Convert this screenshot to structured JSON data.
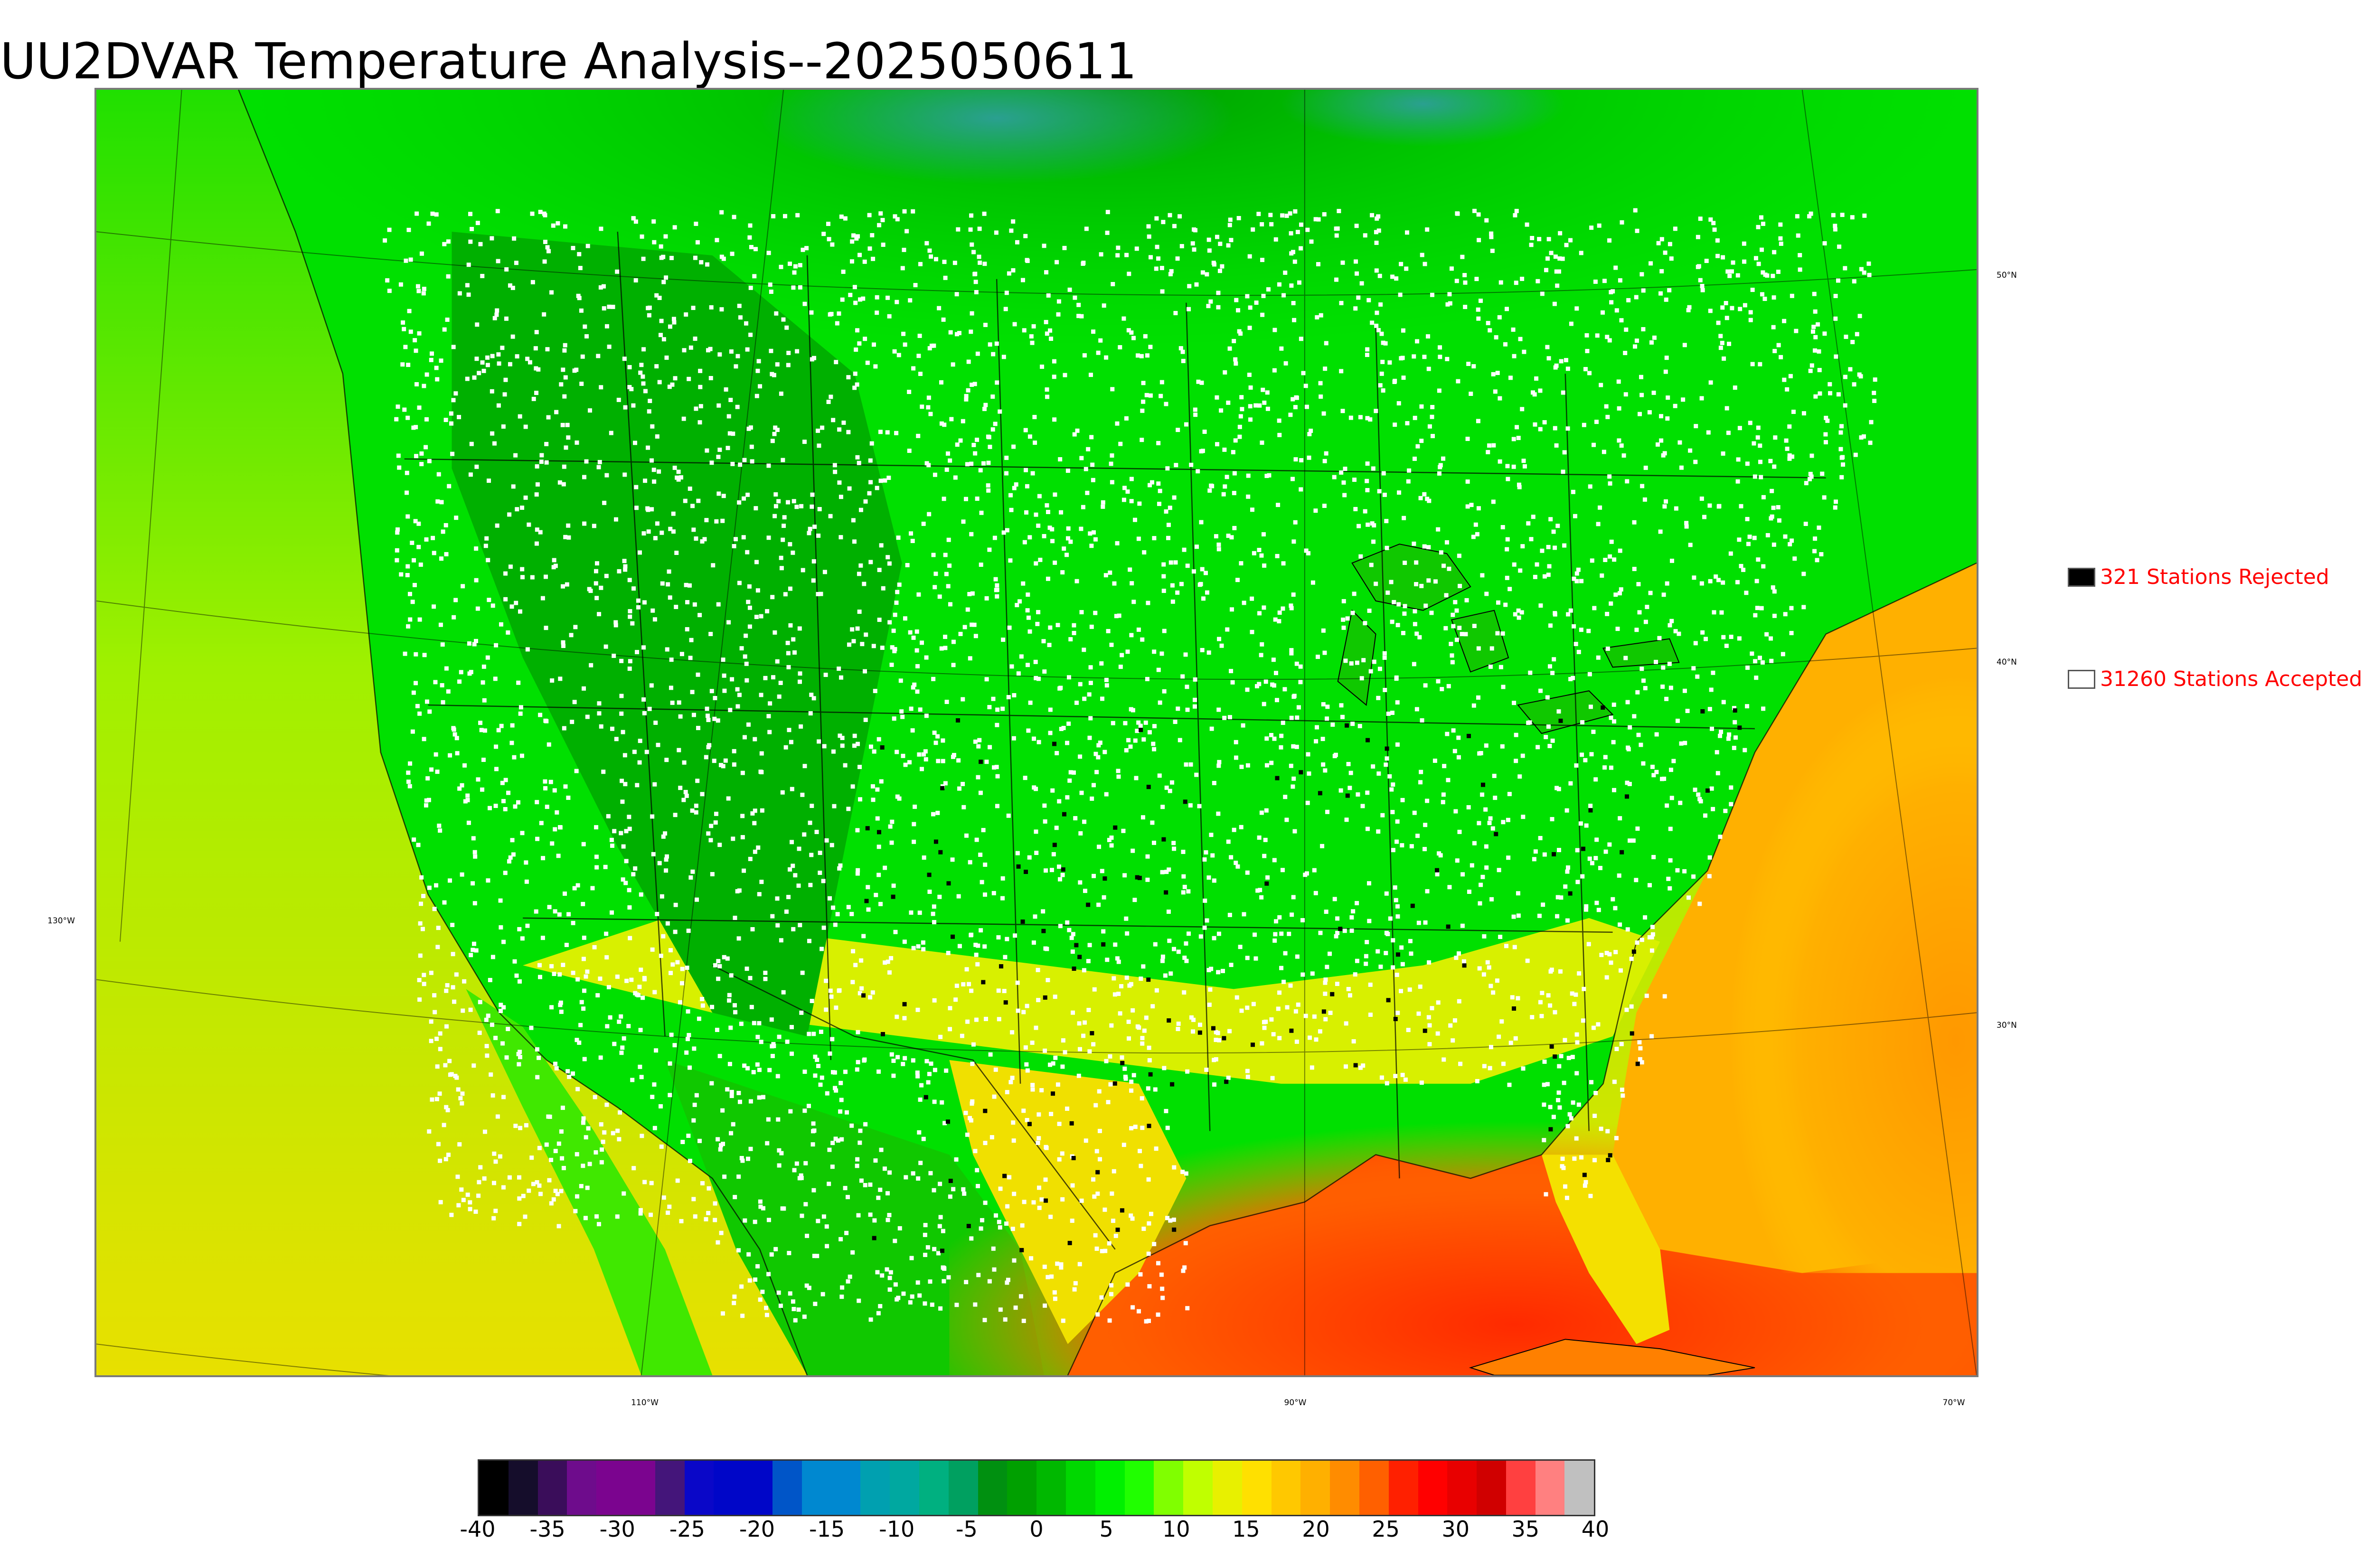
{
  "title": "UU2DVAR Temperature Analysis--2025050611",
  "legend": {
    "rejected": {
      "label": "321 Stations Rejected",
      "swatch_color": "#000000"
    },
    "accepted": {
      "label": "31260 Stations Accepted",
      "swatch_color": "#ffffff"
    }
  },
  "graticule": {
    "lat_labels": [
      "50°N",
      "40°N",
      "30°N"
    ],
    "lon_labels": [
      "130°W",
      "110°W",
      "90°W",
      "70°W"
    ]
  },
  "colorbar": {
    "unit": "",
    "ticks": [
      "-40",
      "-35",
      "-30",
      "-25",
      "-20",
      "-15",
      "-10",
      "-5",
      "0",
      "5",
      "10",
      "15",
      "20",
      "25",
      "30",
      "35",
      "40"
    ],
    "range": [
      -40,
      40
    ],
    "colors": [
      "#000000",
      "#150d2b",
      "#3a0d5a",
      "#6e0c8c",
      "#7b048f",
      "#7b048f",
      "#44157a",
      "#0a07c8",
      "#0006c8",
      "#0006c8",
      "#0055c8",
      "#0088d0",
      "#0088d0",
      "#00a0b0",
      "#00a8a0",
      "#00b080",
      "#00a060",
      "#009010",
      "#00a000",
      "#00b800",
      "#00d800",
      "#00f000",
      "#20ff00",
      "#80ff00",
      "#c0ff00",
      "#e8f000",
      "#ffe000",
      "#ffc800",
      "#ffb000",
      "#ff8c00",
      "#ff6000",
      "#ff2000",
      "#ff0000",
      "#e80000",
      "#d00000",
      "#ff4040",
      "#ff8080",
      "#c0c0c0"
    ],
    "colors_note": ""
  },
  "map": {
    "colors": {
      "ocean_pacific": "#b8f000",
      "ocean_atlantic_south": "#ff9a00",
      "gulf": "#ff3a00",
      "land_mid": "#00e000",
      "land_north": "#00b800",
      "land_cold": "#00a000",
      "canada_far_north": "#30a8a0",
      "station_accepted": "#ffffff",
      "station_rejected": "#000000"
    }
  }
}
